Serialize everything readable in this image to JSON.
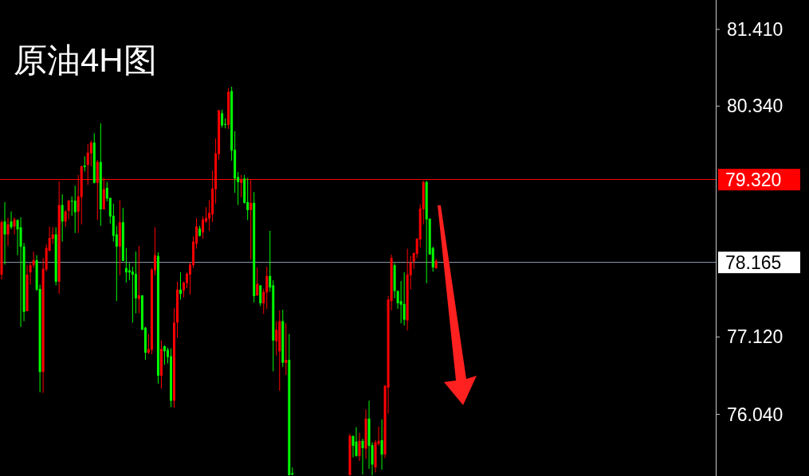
{
  "chart_data": {
    "type": "candlestick",
    "title": "原油4H图",
    "categories": [
      null,
      null,
      null,
      null,
      null,
      null,
      null,
      null,
      null,
      null,
      null,
      null,
      null,
      null,
      null,
      null,
      null,
      null,
      null,
      null,
      null,
      null,
      null,
      null,
      null,
      null,
      null,
      null,
      null,
      null,
      null,
      null,
      null,
      null,
      null,
      null,
      null,
      null,
      null,
      null,
      null,
      null,
      null,
      null,
      null,
      null,
      null,
      null,
      null,
      null,
      null,
      null,
      null,
      null,
      null,
      null,
      null,
      null,
      null,
      null,
      null,
      null,
      null,
      null,
      null,
      null,
      null,
      null,
      null,
      null,
      null,
      null,
      null,
      null,
      null,
      null,
      null,
      null,
      null,
      null,
      null,
      null,
      null,
      null,
      null,
      null,
      null,
      null,
      null,
      null,
      null,
      null,
      null,
      null,
      null,
      null,
      null,
      null,
      null,
      null,
      null,
      null,
      null,
      null,
      null,
      null,
      null,
      null,
      null,
      null,
      null,
      null,
      null,
      null,
      null,
      null,
      null,
      null,
      null,
      null,
      null,
      null,
      null,
      null,
      null,
      null,
      null,
      null,
      null,
      null,
      null,
      null,
      null,
      null,
      null,
      null,
      null,
      null,
      null,
      null,
      null,
      null,
      null,
      null,
      null,
      null,
      null,
      null,
      null,
      null,
      null,
      null,
      null,
      null,
      null,
      null,
      null,
      null,
      null,
      null,
      null,
      null,
      null,
      null,
      null,
      null,
      null,
      null,
      null,
      null,
      null,
      null,
      null,
      null,
      null,
      null,
      null,
      null,
      null,
      null,
      null,
      null,
      null,
      null,
      null,
      null,
      null,
      null,
      null,
      null,
      null,
      null,
      null,
      null,
      null,
      null,
      null,
      null,
      null,
      null,
      null,
      null,
      null,
      null,
      null,
      null,
      null,
      null,
      null,
      null,
      null,
      null,
      null,
      null,
      null,
      null,
      null,
      null,
      null,
      null,
      null,
      null,
      null,
      null
    ],
    "ohlc": [
      [
        77.99,
        78.75,
        77.92,
        78.72
      ],
      [
        78.73,
        79.0,
        78.13,
        78.55
      ],
      [
        78.55,
        78.78,
        78.39,
        78.69
      ],
      [
        78.73,
        78.87,
        78.62,
        78.65
      ],
      [
        78.66,
        78.79,
        78.55,
        78.76
      ],
      [
        78.75,
        78.76,
        78.26,
        78.62
      ],
      [
        78.65,
        78.79,
        77.26,
        78.38
      ],
      [
        78.38,
        78.43,
        77.34,
        77.47
      ],
      [
        77.48,
        78.12,
        77.48,
        77.99
      ],
      [
        78.02,
        78.16,
        77.85,
        78.12
      ],
      [
        78.12,
        78.31,
        78.08,
        78.19
      ],
      [
        78.19,
        78.26,
        77.76,
        77.78
      ],
      [
        77.79,
        77.85,
        76.35,
        76.63
      ],
      [
        76.63,
        78.22,
        76.34,
        78.07
      ],
      [
        78.06,
        78.41,
        78.03,
        78.36
      ],
      [
        78.32,
        78.66,
        78.32,
        78.5
      ],
      [
        78.49,
        78.65,
        78.42,
        78.55
      ],
      [
        78.55,
        78.65,
        77.84,
        77.89
      ],
      [
        77.89,
        79.29,
        77.72,
        78.96
      ],
      [
        78.96,
        79.11,
        78.45,
        78.73
      ],
      [
        78.73,
        78.89,
        78.66,
        78.87
      ],
      [
        78.88,
        79.03,
        78.76,
        79.02
      ],
      [
        79.02,
        79.08,
        78.81,
        79.01
      ],
      [
        79.02,
        79.23,
        78.57,
        78.86
      ],
      [
        78.87,
        79.38,
        78.57,
        79.08
      ],
      [
        79.07,
        79.51,
        78.69,
        79.5
      ],
      [
        79.51,
        79.64,
        79.43,
        79.49
      ],
      [
        79.52,
        79.81,
        79.24,
        79.69
      ],
      [
        79.68,
        79.86,
        79.5,
        79.83
      ],
      [
        79.83,
        79.96,
        79.26,
        79.27
      ],
      [
        79.27,
        79.59,
        78.75,
        79.56
      ],
      [
        79.56,
        80.1,
        78.67,
        78.9
      ],
      [
        78.9,
        79.34,
        78.9,
        79.18
      ],
      [
        79.2,
        79.28,
        79.01,
        79.05
      ],
      [
        79.06,
        79.06,
        78.7,
        78.8
      ],
      [
        78.81,
        78.98,
        78.45,
        78.53
      ],
      [
        78.55,
        78.67,
        77.62,
        78.38
      ],
      [
        78.38,
        79.03,
        77.98,
        78.72
      ],
      [
        78.72,
        78.92,
        78.18,
        78.18
      ],
      [
        78.08,
        78.36,
        77.88,
        78.02
      ],
      [
        78.05,
        78.15,
        77.91,
        78.02
      ],
      [
        78.03,
        78.1,
        77.32,
        77.99
      ],
      [
        78.0,
        78.31,
        77.45,
        77.66
      ],
      [
        77.65,
        78.39,
        77.45,
        77.7
      ],
      [
        77.7,
        77.7,
        77.22,
        77.22
      ],
      [
        77.25,
        77.26,
        76.8,
        76.9
      ],
      [
        76.9,
        77.16,
        76.88,
        76.95
      ],
      [
        76.94,
        78.08,
        76.88,
        78.06
      ],
      [
        78.05,
        78.65,
        77.98,
        78.26
      ],
      [
        78.25,
        78.3,
        76.47,
        76.58
      ],
      [
        76.58,
        77.07,
        76.4,
        76.95
      ],
      [
        76.99,
        77.0,
        76.73,
        76.92
      ],
      [
        76.94,
        76.97,
        76.75,
        76.84
      ],
      [
        76.85,
        76.96,
        76.14,
        76.23
      ],
      [
        76.23,
        77.52,
        76.13,
        77.32
      ],
      [
        77.32,
        77.89,
        77.11,
        77.78
      ],
      [
        77.78,
        78.02,
        77.64,
        77.72
      ],
      [
        77.77,
        77.89,
        77.67,
        77.88
      ],
      [
        77.87,
        78.02,
        77.8,
        78.0
      ],
      [
        77.99,
        78.16,
        77.71,
        78.13
      ],
      [
        78.12,
        78.52,
        78.08,
        78.45
      ],
      [
        78.42,
        78.78,
        78.35,
        78.66
      ],
      [
        78.63,
        78.67,
        78.52,
        78.53
      ],
      [
        78.58,
        78.8,
        78.49,
        78.76
      ],
      [
        78.73,
        78.93,
        78.71,
        78.78
      ],
      [
        78.77,
        79.03,
        78.6,
        78.85
      ],
      [
        78.83,
        79.44,
        78.72,
        79.19
      ],
      [
        79.18,
        79.89,
        78.98,
        79.68
      ],
      [
        79.67,
        80.29,
        79.59,
        80.28
      ],
      [
        80.24,
        80.29,
        80.04,
        80.07
      ],
      [
        80.09,
        80.17,
        80.03,
        80.08
      ],
      [
        80.08,
        80.59,
        80.02,
        80.54
      ],
      [
        80.55,
        80.61,
        79.58,
        79.72
      ],
      [
        79.73,
        79.99,
        79.13,
        79.33
      ],
      [
        79.35,
        79.42,
        78.96,
        79.28
      ],
      [
        79.27,
        79.38,
        79.07,
        79.32
      ],
      [
        79.33,
        79.38,
        78.98,
        78.99
      ],
      [
        79.0,
        79.34,
        78.75,
        78.89
      ],
      [
        78.89,
        79.32,
        78.2,
        78.99
      ],
      [
        78.99,
        79.14,
        77.6,
        77.69
      ],
      [
        77.7,
        78.09,
        77.69,
        77.86
      ],
      [
        77.84,
        77.84,
        77.55,
        77.59
      ],
      [
        77.59,
        77.79,
        77.44,
        77.75
      ],
      [
        77.74,
        78.1,
        77.51,
        77.97
      ],
      [
        77.97,
        78.6,
        77.75,
        77.81
      ],
      [
        77.84,
        77.91,
        76.64,
        77.07
      ],
      [
        77.06,
        77.34,
        76.86,
        77.22
      ],
      [
        76.92,
        77.49,
        76.37,
        77.34
      ],
      [
        77.34,
        77.5,
        76.7,
        76.76
      ],
      [
        76.76,
        77.31,
        76.59,
        76.8
      ],
      [
        76.8,
        77.16,
        75.19,
        75.19
      ],
      [
        75.22,
        75.3,
        75.19,
        75.2
      ],
      null,
      null,
      null,
      null,
      null,
      null,
      null,
      null,
      null,
      null,
      null,
      null,
      null,
      null,
      null,
      null,
      null,
      [
        75.19,
        75.77,
        75.19,
        75.74
      ],
      [
        75.74,
        75.74,
        75.44,
        75.6
      ],
      [
        75.66,
        75.86,
        75.45,
        75.46
      ],
      [
        75.46,
        75.78,
        75.39,
        75.67
      ],
      [
        75.67,
        75.7,
        75.2,
        75.57
      ],
      [
        75.56,
        76.11,
        75.42,
        75.98
      ],
      [
        75.98,
        76.23,
        75.28,
        75.6
      ],
      [
        75.61,
        75.65,
        75.19,
        75.34
      ],
      [
        75.3,
        75.68,
        75.23,
        75.65
      ],
      [
        75.63,
        75.87,
        75.6,
        75.67
      ],
      [
        75.68,
        75.97,
        75.27,
        75.48
      ],
      [
        75.48,
        76.45,
        75.43,
        76.44
      ],
      [
        76.41,
        77.69,
        76.05,
        77.64
      ],
      [
        77.62,
        78.27,
        77.49,
        78.22
      ],
      [
        78.12,
        78.15,
        77.66,
        77.76
      ],
      [
        77.76,
        77.77,
        77.51,
        77.59
      ],
      [
        77.62,
        77.9,
        77.31,
        77.57
      ],
      [
        77.58,
        78.02,
        77.28,
        77.36
      ],
      [
        77.35,
        78.35,
        77.21,
        77.99
      ],
      [
        77.98,
        78.25,
        77.78,
        78.16
      ],
      [
        78.17,
        78.3,
        78.07,
        78.29
      ],
      [
        78.28,
        78.5,
        78.22,
        78.49
      ],
      [
        78.48,
        78.97,
        78.37,
        78.91
      ],
      [
        78.9,
        79.3,
        78.69,
        79.28
      ],
      [
        79.28,
        79.3,
        77.87,
        78.76
      ],
      [
        78.77,
        78.77,
        78.27,
        78.27
      ],
      [
        78.36,
        78.38,
        78.03,
        78.09
      ],
      [
        78.08,
        78.21,
        78.07,
        78.18
      ],
      null,
      null,
      null,
      null,
      null,
      null,
      null,
      null,
      null,
      null,
      null,
      null,
      null,
      null,
      null,
      null,
      null,
      null,
      null,
      null,
      null,
      null,
      null,
      null,
      null,
      null,
      null,
      null,
      null,
      null,
      null,
      null,
      null,
      null,
      null,
      null,
      null,
      null,
      null,
      null,
      null,
      null,
      null,
      null,
      null,
      null,
      null,
      null,
      null,
      null,
      null,
      null,
      null,
      null,
      null,
      null,
      null,
      null,
      null,
      null,
      null,
      null,
      null,
      null,
      null,
      null,
      null,
      null,
      null,
      null,
      null,
      null,
      null,
      null,
      null,
      null,
      null,
      null,
      null,
      null,
      null,
      null,
      null,
      null,
      null,
      null,
      null
    ],
    "colors": [
      "#ff0000",
      "#00ff00",
      "#ff0000",
      "#00ff00",
      "#ff0000",
      "#00ff00",
      "#00ff00",
      "#00ff00",
      "#ff0000",
      "#ff0000",
      "#ff0000",
      "#00ff00",
      "#00ff00",
      "#ff0000",
      "#ff0000",
      "#ff0000",
      "#ff0000",
      "#00ff00",
      "#ff0000",
      "#00ff00",
      "#ff0000",
      "#ff0000",
      "#00ff00",
      "#00ff00",
      "#ff0000",
      "#ff0000",
      "#00ff00",
      "#ff0000",
      "#ff0000",
      "#00ff00",
      "#ff0000",
      "#00ff00",
      "#ff0000",
      "#00ff00",
      "#00ff00",
      "#00ff00",
      "#00ff00",
      "#ff0000",
      "#00ff00",
      "#00ff00",
      "#00ff00",
      "#00ff00",
      "#00ff00",
      "#ff0000",
      "#00ff00",
      "#00ff00",
      "#ff0000",
      "#ff0000",
      "#ff0000",
      "#00ff00",
      "#ff0000",
      "#00ff00",
      "#00ff00",
      "#00ff00",
      "#ff0000",
      "#ff0000",
      "#00ff00",
      "#ff0000",
      "#ff0000",
      "#ff0000",
      "#ff0000",
      "#ff0000",
      "#00ff00",
      "#ff0000",
      "#ff0000",
      "#ff0000",
      "#ff0000",
      "#ff0000",
      "#ff0000",
      "#00ff00",
      "#00ff00",
      "#ff0000",
      "#00ff00",
      "#00ff00",
      "#00ff00",
      "#ff0000",
      "#00ff00",
      "#00ff00",
      "#ff0000",
      "#00ff00",
      "#ff0000",
      "#00ff00",
      "#ff0000",
      "#ff0000",
      "#00ff00",
      "#00ff00",
      "#ff0000",
      "#ff0000",
      "#00ff00",
      "#ff0000",
      "#00ff00",
      "#00ff00",
      null,
      null,
      null,
      null,
      null,
      null,
      null,
      null,
      null,
      null,
      null,
      null,
      null,
      null,
      null,
      null,
      null,
      "#ff0000",
      "#00ff00",
      "#00ff00",
      "#ff0000",
      "#00ff00",
      "#ff0000",
      "#00ff00",
      "#00ff00",
      "#ff0000",
      "#ff0000",
      "#00ff00",
      "#ff0000",
      "#ff0000",
      "#ff0000",
      "#00ff00",
      "#00ff00",
      "#00ff00",
      "#00ff00",
      "#ff0000",
      "#ff0000",
      "#ff0000",
      "#ff0000",
      "#ff0000",
      "#ff0000",
      "#00ff00",
      "#00ff00",
      "#00ff00",
      "#ff0000",
      null,
      null,
      null,
      null,
      null,
      null,
      null,
      null,
      null,
      null,
      null,
      null,
      null,
      null,
      null,
      null,
      null,
      null,
      null,
      null,
      null,
      null,
      null,
      null,
      null,
      null,
      null,
      null,
      null,
      null,
      null,
      null,
      null,
      null,
      null,
      null,
      null,
      null,
      null,
      null,
      null,
      null,
      null,
      null,
      null,
      null,
      null,
      null,
      null,
      null,
      null,
      null,
      null,
      null,
      null,
      null,
      null,
      null,
      null,
      null,
      null,
      null,
      null,
      null,
      null,
      null,
      null,
      null,
      null,
      null,
      null,
      null,
      null,
      null,
      null,
      null,
      null,
      null,
      null,
      null,
      null,
      null,
      null,
      null,
      null,
      null,
      null
    ],
    "ylim": [
      75.18,
      81.82
    ],
    "yticks": [
      {
        "value": 81.41,
        "label": "81.410"
      },
      {
        "value": 80.34,
        "label": "80.340"
      },
      {
        "value": 77.12,
        "label": "77.120"
      },
      {
        "value": 76.04,
        "label": "76.040"
      }
    ],
    "tick_labels": "y",
    "ref_lines": [
      {
        "axis": "y",
        "value": 79.32,
        "label": "79.320",
        "color": "#ff0000",
        "line_style": "solid"
      },
      {
        "axis": "y",
        "value": 78.165,
        "label": "78.165",
        "color": "#8595a8",
        "line_style": "solid"
      }
    ],
    "grid": false
  }
}
